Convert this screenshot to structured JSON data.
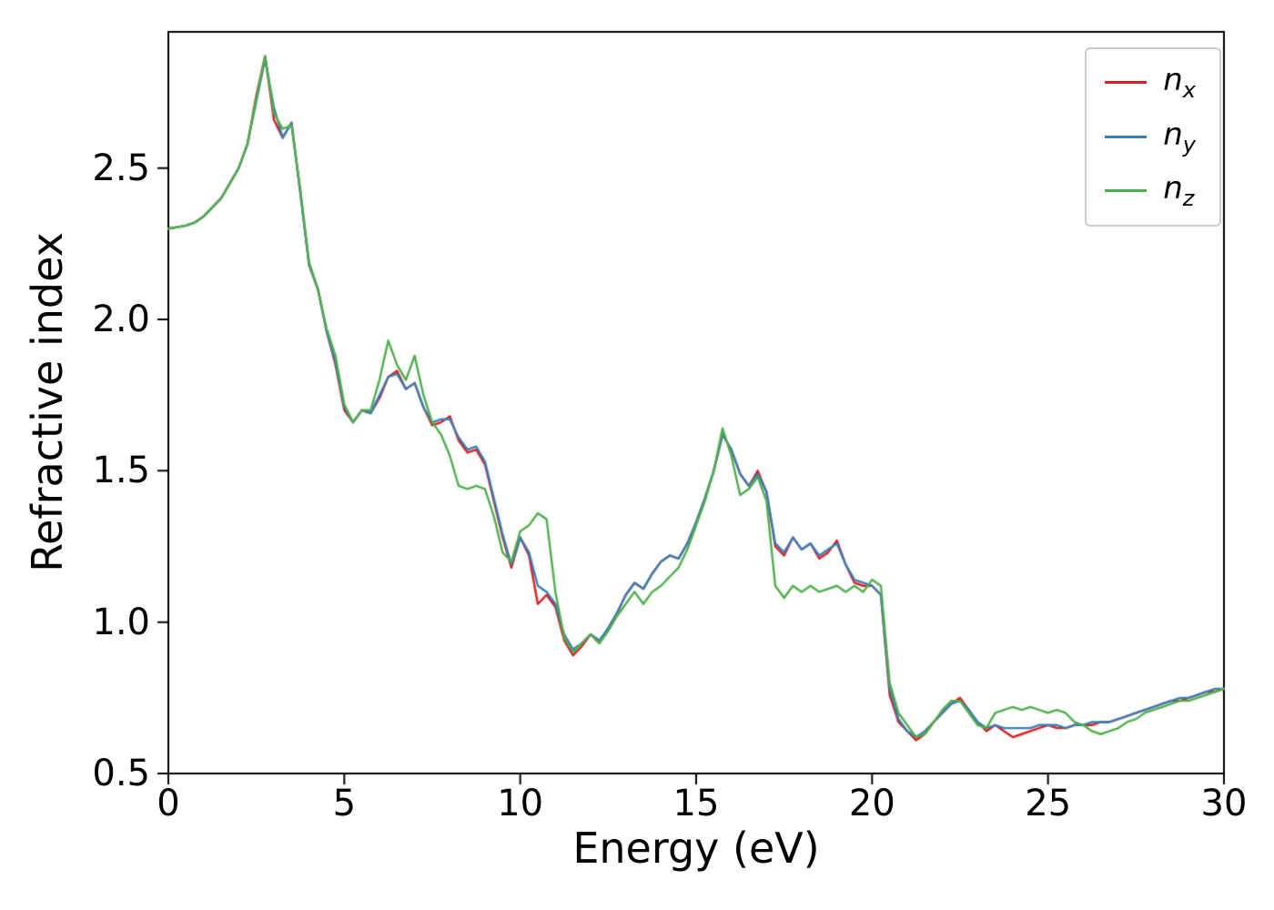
{
  "figure": {
    "background": "#ffffff",
    "axes_color": "#000000"
  },
  "chart_data": {
    "type": "line",
    "title": "",
    "xlabel": "Energy (eV)",
    "ylabel": "Refractive index",
    "xlim": [
      0,
      30
    ],
    "ylim": [
      0.5,
      2.95
    ],
    "xtick_values": [
      0,
      5,
      10,
      15,
      20,
      25,
      30
    ],
    "xtick_labels": [
      "0",
      "5",
      "10",
      "15",
      "20",
      "25",
      "30"
    ],
    "ytick_values": [
      0.5,
      1.0,
      1.5,
      2.0,
      2.5
    ],
    "ytick_labels": [
      "0.5",
      "1.0",
      "1.5",
      "2.0",
      "2.5"
    ],
    "grid": false,
    "legend_position": "upper right",
    "x_start": 0,
    "x_step": 0.25,
    "series": [
      {
        "name": "n_x",
        "label_base": "n",
        "label_sub": "x",
        "color": "#e41a1c",
        "values": [
          2.3,
          2.305,
          2.31,
          2.32,
          2.34,
          2.37,
          2.4,
          2.45,
          2.5,
          2.58,
          2.74,
          2.87,
          2.66,
          2.6,
          2.65,
          2.42,
          2.18,
          2.1,
          1.96,
          1.85,
          1.7,
          1.66,
          1.7,
          1.69,
          1.74,
          1.81,
          1.83,
          1.77,
          1.79,
          1.71,
          1.65,
          1.66,
          1.68,
          1.6,
          1.56,
          1.57,
          1.52,
          1.4,
          1.28,
          1.18,
          1.28,
          1.22,
          1.06,
          1.09,
          1.05,
          0.94,
          0.89,
          0.92,
          0.96,
          0.93,
          0.98,
          1.03,
          1.09,
          1.13,
          1.11,
          1.16,
          1.2,
          1.22,
          1.21,
          1.26,
          1.33,
          1.41,
          1.5,
          1.62,
          1.57,
          1.49,
          1.45,
          1.5,
          1.43,
          1.25,
          1.22,
          1.28,
          1.24,
          1.26,
          1.21,
          1.23,
          1.27,
          1.19,
          1.13,
          1.12,
          1.12,
          1.09,
          0.76,
          0.67,
          0.64,
          0.61,
          0.63,
          0.67,
          0.7,
          0.73,
          0.75,
          0.71,
          0.67,
          0.64,
          0.66,
          0.64,
          0.62,
          0.63,
          0.64,
          0.65,
          0.66,
          0.65,
          0.65,
          0.66,
          0.66,
          0.66,
          0.67,
          0.67,
          0.68,
          0.69,
          0.7,
          0.71,
          0.72,
          0.73,
          0.74,
          0.74,
          0.75,
          0.76,
          0.77,
          0.77,
          0.78
        ]
      },
      {
        "name": "n_y",
        "label_base": "n",
        "label_sub": "y",
        "color": "#377eb8",
        "values": [
          2.3,
          2.305,
          2.31,
          2.32,
          2.34,
          2.37,
          2.4,
          2.45,
          2.5,
          2.58,
          2.72,
          2.86,
          2.7,
          2.6,
          2.65,
          2.42,
          2.18,
          2.1,
          1.96,
          1.86,
          1.71,
          1.66,
          1.7,
          1.69,
          1.75,
          1.81,
          1.82,
          1.77,
          1.79,
          1.71,
          1.66,
          1.67,
          1.67,
          1.61,
          1.57,
          1.58,
          1.53,
          1.41,
          1.29,
          1.19,
          1.28,
          1.23,
          1.12,
          1.1,
          1.06,
          0.96,
          0.91,
          0.93,
          0.96,
          0.94,
          0.98,
          1.03,
          1.09,
          1.13,
          1.11,
          1.16,
          1.2,
          1.22,
          1.21,
          1.26,
          1.33,
          1.41,
          1.5,
          1.62,
          1.57,
          1.49,
          1.45,
          1.49,
          1.43,
          1.26,
          1.23,
          1.28,
          1.24,
          1.26,
          1.22,
          1.24,
          1.26,
          1.19,
          1.14,
          1.13,
          1.12,
          1.09,
          0.78,
          0.68,
          0.64,
          0.62,
          0.64,
          0.67,
          0.7,
          0.73,
          0.74,
          0.71,
          0.67,
          0.65,
          0.66,
          0.65,
          0.65,
          0.65,
          0.65,
          0.66,
          0.66,
          0.66,
          0.65,
          0.66,
          0.66,
          0.67,
          0.67,
          0.67,
          0.68,
          0.69,
          0.7,
          0.71,
          0.72,
          0.73,
          0.74,
          0.75,
          0.75,
          0.76,
          0.77,
          0.78,
          0.78
        ]
      },
      {
        "name": "n_z",
        "label_base": "n",
        "label_sub": "z",
        "color": "#4daf4a",
        "values": [
          2.3,
          2.305,
          2.31,
          2.32,
          2.34,
          2.37,
          2.4,
          2.45,
          2.5,
          2.58,
          2.73,
          2.87,
          2.68,
          2.63,
          2.64,
          2.43,
          2.19,
          2.1,
          1.97,
          1.88,
          1.72,
          1.66,
          1.7,
          1.7,
          1.8,
          1.93,
          1.85,
          1.8,
          1.88,
          1.75,
          1.66,
          1.62,
          1.55,
          1.45,
          1.44,
          1.45,
          1.44,
          1.35,
          1.23,
          1.2,
          1.3,
          1.32,
          1.36,
          1.34,
          1.1,
          0.95,
          0.9,
          0.93,
          0.96,
          0.93,
          0.97,
          1.02,
          1.06,
          1.1,
          1.06,
          1.1,
          1.12,
          1.15,
          1.18,
          1.24,
          1.32,
          1.4,
          1.5,
          1.64,
          1.55,
          1.42,
          1.44,
          1.48,
          1.4,
          1.12,
          1.08,
          1.12,
          1.1,
          1.12,
          1.1,
          1.11,
          1.12,
          1.1,
          1.12,
          1.1,
          1.14,
          1.12,
          0.8,
          0.7,
          0.66,
          0.62,
          0.63,
          0.67,
          0.71,
          0.74,
          0.74,
          0.7,
          0.66,
          0.65,
          0.7,
          0.71,
          0.72,
          0.71,
          0.72,
          0.71,
          0.7,
          0.71,
          0.7,
          0.67,
          0.66,
          0.64,
          0.63,
          0.64,
          0.65,
          0.67,
          0.68,
          0.7,
          0.71,
          0.72,
          0.73,
          0.74,
          0.74,
          0.75,
          0.76,
          0.77,
          0.78
        ]
      }
    ]
  }
}
